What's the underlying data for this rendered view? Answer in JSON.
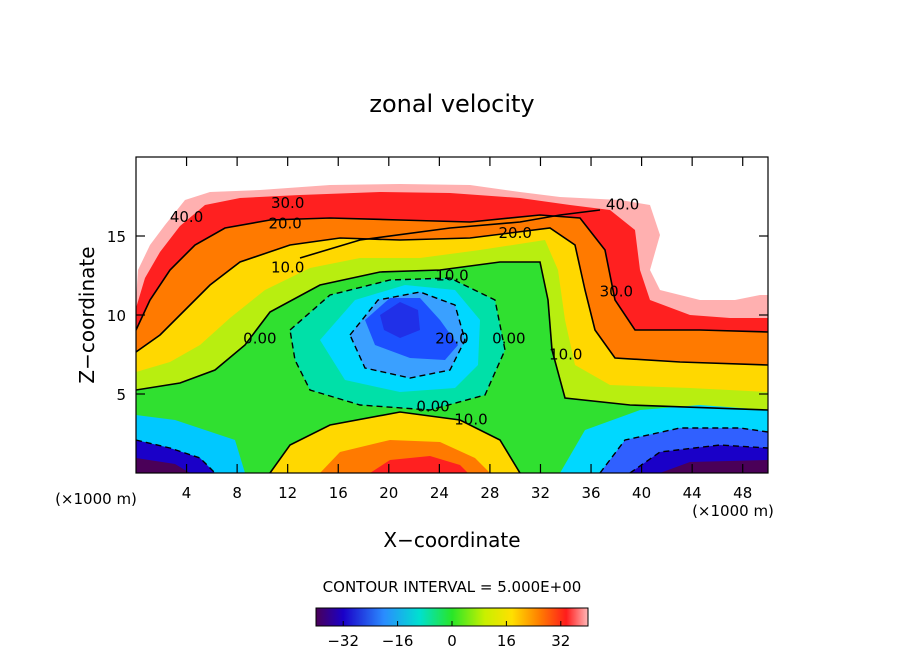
{
  "chart_data": {
    "type": "heatmap",
    "title": "zonal velocity",
    "xlabel": "X−coordinate",
    "ylabel": "Z−coordinate",
    "x_unit": "(×1000 m)",
    "x_unit_right": "(×1000 m)",
    "xlim": [
      0,
      50
    ],
    "ylim": [
      0,
      20
    ],
    "x_ticks": [
      4,
      8,
      12,
      16,
      20,
      24,
      28,
      32,
      36,
      40,
      44,
      48
    ],
    "y_ticks": [
      5,
      10,
      15
    ],
    "contour_interval_text": "CONTOUR INTERVAL = 5.000E+00",
    "contour_labels": [
      {
        "text": "40.0",
        "x": 4.0,
        "y": 16.2
      },
      {
        "text": "30.0",
        "x": 12.0,
        "y": 17.1
      },
      {
        "text": "20.0",
        "x": 11.8,
        "y": 15.8
      },
      {
        "text": "10.0",
        "x": 12.0,
        "y": 13.0
      },
      {
        "text": "40.0",
        "x": 38.5,
        "y": 17.0
      },
      {
        "text": "20.0",
        "x": 30.0,
        "y": 15.2
      },
      {
        "text": "10.0",
        "x": 25.0,
        "y": 12.5
      },
      {
        "text": "30.0",
        "x": 38.0,
        "y": 11.5
      },
      {
        "text": "0.00",
        "x": 9.8,
        "y": 8.5
      },
      {
        "text": "20.0",
        "x": 25.0,
        "y": 8.5
      },
      {
        "text": "0.00",
        "x": 29.5,
        "y": 8.5
      },
      {
        "text": "10.0",
        "x": 34.0,
        "y": 7.5
      },
      {
        "text": "0.00",
        "x": 23.5,
        "y": 4.2
      },
      {
        "text": "10.0",
        "x": 26.5,
        "y": 3.4
      }
    ],
    "colorbar": {
      "min": -40,
      "max": 40,
      "ticks": [
        -32,
        -16,
        0,
        16,
        32
      ],
      "tick_labels": [
        "−32",
        "−16",
        "0",
        "16",
        "32"
      ]
    }
  }
}
